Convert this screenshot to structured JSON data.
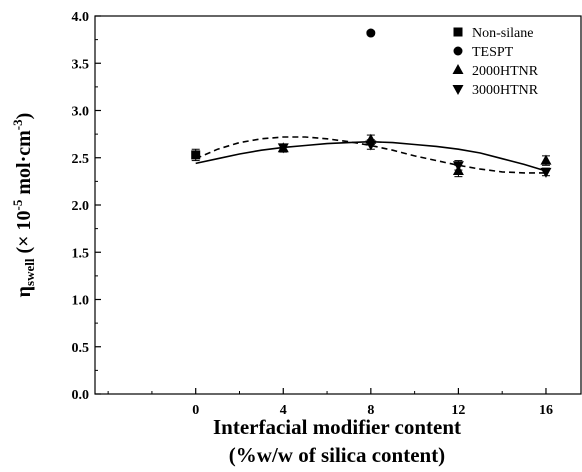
{
  "chart_data": {
    "type": "scatter",
    "x_ticks": [
      0,
      4,
      8,
      12,
      16
    ],
    "x_tick_labels": [
      "0",
      "4",
      "8",
      "12",
      "16"
    ],
    "y_ticks": [
      0,
      0.5,
      1,
      1.5,
      2,
      2.5,
      3,
      3.5,
      4
    ],
    "y_tick_labels": [
      "0.0",
      "0.5",
      "1.0",
      "1.5",
      "2.0",
      "2.5",
      "3.0",
      "3.5",
      "4.0"
    ],
    "xlim": [
      -4.6,
      17.6
    ],
    "ylim": [
      0,
      4
    ],
    "xlabel_line1": "Interfacial modifier content",
    "xlabel_line2": "(%w/w of silica content)",
    "ylabel_main": "η",
    "ylabel_sub": "swell",
    "ylabel_rest": " (× 10",
    "ylabel_exp1": "-5",
    "ylabel_unit": " mol·cm",
    "ylabel_exp2": "-3",
    "ylabel_end": ")",
    "legend_position": "top-right",
    "series": [
      {
        "name": "Non-silane",
        "marker": "square",
        "x": [
          0
        ],
        "y": [
          2.53
        ],
        "err": [
          0.06
        ]
      },
      {
        "name": "TESPT",
        "marker": "circle",
        "x": [
          8
        ],
        "y": [
          3.82
        ],
        "err": [
          0.02
        ]
      },
      {
        "name": "2000HTNR",
        "marker": "triangle-up",
        "x": [
          4,
          8,
          12,
          16
        ],
        "y": [
          2.6,
          2.69,
          2.36,
          2.47
        ],
        "err": [
          0.04,
          0.05,
          0.06,
          0.05
        ]
      },
      {
        "name": "3000HTNR",
        "marker": "triangle-down",
        "x": [
          4,
          8,
          12,
          16
        ],
        "y": [
          2.61,
          2.64,
          2.42,
          2.35
        ],
        "err": [
          0.03,
          0.05,
          0.05,
          0.04
        ]
      }
    ],
    "fits": [
      {
        "style": "solid",
        "x": [
          0,
          1,
          2,
          3,
          4,
          5,
          6,
          7,
          8,
          9,
          10,
          11,
          12,
          13,
          14,
          15,
          16
        ],
        "y": [
          2.44,
          2.49,
          2.54,
          2.58,
          2.61,
          2.63,
          2.65,
          2.66,
          2.67,
          2.66,
          2.64,
          2.62,
          2.59,
          2.55,
          2.49,
          2.43,
          2.36
        ]
      },
      {
        "style": "dashed",
        "x": [
          0,
          1,
          2,
          3,
          4,
          5,
          6,
          7,
          8,
          9,
          10,
          11,
          12,
          13,
          14,
          15,
          16
        ],
        "y": [
          2.49,
          2.59,
          2.66,
          2.7,
          2.72,
          2.72,
          2.7,
          2.67,
          2.63,
          2.58,
          2.52,
          2.47,
          2.42,
          2.38,
          2.35,
          2.34,
          2.34
        ]
      }
    ]
  }
}
